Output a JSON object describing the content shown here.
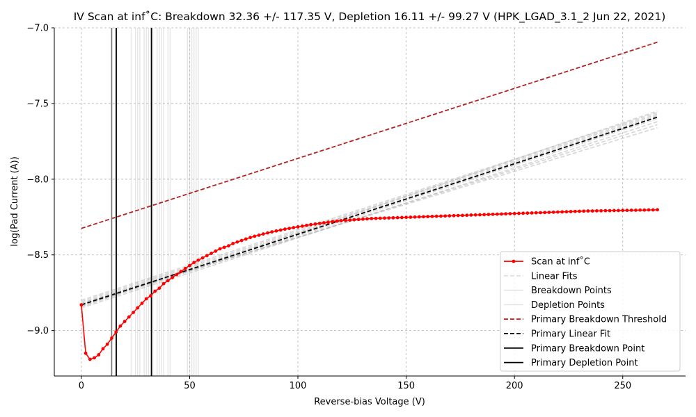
{
  "chart_data": {
    "type": "line",
    "title": "IV Scan at inf˚C: Breakdown 32.36 +/- 117.35 V, Depletion 16.11 +/- 99.27 V (HPK_LGAD_3.1_2 Jun 22, 2021)",
    "xlabel": "Reverse-bias Voltage (V)",
    "ylabel": "log(Pad Current (A))",
    "xlim": [
      -12.5,
      279
    ],
    "ylim": [
      -9.3,
      -7.0
    ],
    "x_ticks": [
      0,
      50,
      100,
      150,
      200,
      250
    ],
    "y_ticks": [
      -9.0,
      -8.5,
      -8.0,
      -7.5,
      -7.0
    ],
    "x_tick_labels": [
      "0",
      "50",
      "100",
      "150",
      "200",
      "250"
    ],
    "y_tick_labels": [
      "−9.0",
      "−8.5",
      "−8.0",
      "−7.5",
      "−7.0"
    ],
    "grid": true,
    "legend_position": "bottom-right",
    "legend": [
      "Scan at inf˚C",
      "Linear Fits",
      "Breakdown Points",
      "Depletion Points",
      "Primary Breakdown Threshold",
      "Primary Linear Fit",
      "Primary Breakdown Point",
      "Primary Depletion Point"
    ],
    "scan": {
      "color": "#ff0000",
      "x": [
        0,
        2,
        4,
        6,
        8,
        10,
        12,
        14,
        16,
        18,
        20,
        22,
        24,
        26,
        28,
        30,
        32,
        34,
        36,
        38,
        40,
        42,
        44,
        46,
        48,
        50,
        52,
        54,
        56,
        58,
        60,
        62,
        64,
        66,
        68,
        70,
        72,
        74,
        76,
        78,
        80,
        82,
        84,
        86,
        88,
        90,
        92,
        94,
        96,
        98,
        100,
        102,
        104,
        106,
        108,
        110,
        112,
        114,
        116,
        118,
        120,
        122,
        124,
        126,
        128,
        130,
        132,
        134,
        136,
        138,
        140,
        142,
        144,
        146,
        148,
        150,
        152,
        154,
        156,
        158,
        160,
        162,
        164,
        166,
        168,
        170,
        172,
        174,
        176,
        178,
        180,
        182,
        184,
        186,
        188,
        190,
        192,
        194,
        196,
        198,
        200,
        202,
        204,
        206,
        208,
        210,
        212,
        214,
        216,
        218,
        220,
        222,
        224,
        226,
        228,
        230,
        232,
        234,
        236,
        238,
        240,
        242,
        244,
        246,
        248,
        250,
        252,
        254,
        256,
        258,
        260,
        262,
        264,
        266
      ],
      "y": [
        -8.83,
        -9.15,
        -9.19,
        -9.18,
        -9.16,
        -9.12,
        -9.09,
        -9.05,
        -9.01,
        -8.97,
        -8.94,
        -8.91,
        -8.88,
        -8.85,
        -8.82,
        -8.79,
        -8.77,
        -8.74,
        -8.72,
        -8.69,
        -8.67,
        -8.65,
        -8.63,
        -8.61,
        -8.59,
        -8.57,
        -8.55,
        -8.535,
        -8.52,
        -8.505,
        -8.49,
        -8.475,
        -8.46,
        -8.45,
        -8.44,
        -8.425,
        -8.415,
        -8.405,
        -8.395,
        -8.385,
        -8.377,
        -8.37,
        -8.362,
        -8.355,
        -8.348,
        -8.342,
        -8.336,
        -8.33,
        -8.325,
        -8.32,
        -8.315,
        -8.31,
        -8.305,
        -8.3,
        -8.296,
        -8.292,
        -8.288,
        -8.284,
        -8.28,
        -8.277,
        -8.274,
        -8.272,
        -8.27,
        -8.268,
        -8.266,
        -8.264,
        -8.262,
        -8.26,
        -8.259,
        -8.258,
        -8.257,
        -8.256,
        -8.255,
        -8.254,
        -8.253,
        -8.252,
        -8.251,
        -8.25,
        -8.249,
        -8.248,
        -8.247,
        -8.246,
        -8.245,
        -8.244,
        -8.243,
        -8.242,
        -8.241,
        -8.24,
        -8.239,
        -8.238,
        -8.237,
        -8.236,
        -8.235,
        -8.234,
        -8.233,
        -8.232,
        -8.231,
        -8.23,
        -8.229,
        -8.228,
        -8.227,
        -8.226,
        -8.225,
        -8.224,
        -8.223,
        -8.222,
        -8.221,
        -8.22,
        -8.219,
        -8.218,
        -8.217,
        -8.216,
        -8.215,
        -8.214,
        -8.213,
        -8.212,
        -8.211,
        -8.21,
        -8.21,
        -8.209,
        -8.209,
        -8.208,
        -8.208,
        -8.207,
        -8.207,
        -8.206,
        -8.206,
        -8.205,
        -8.205,
        -8.204,
        -8.204,
        -8.203,
        -8.203,
        -8.202
      ]
    },
    "primary_breakdown_threshold": {
      "color": "#b22222",
      "x": [
        0,
        266
      ],
      "y": [
        -8.325,
        -7.095
      ]
    },
    "primary_linear_fit": {
      "color": "#000000",
      "x": [
        0,
        266
      ],
      "y": [
        -8.83,
        -7.59
      ]
    },
    "linear_fits": [
      {
        "x": [
          0,
          266
        ],
        "y": [
          -8.8,
          -7.56
        ]
      },
      {
        "x": [
          0,
          266
        ],
        "y": [
          -8.81,
          -7.57
        ]
      },
      {
        "x": [
          0,
          266
        ],
        "y": [
          -8.82,
          -7.58
        ]
      },
      {
        "x": [
          0,
          266
        ],
        "y": [
          -8.84,
          -7.6
        ]
      },
      {
        "x": [
          0,
          266
        ],
        "y": [
          -8.85,
          -7.62
        ]
      },
      {
        "x": [
          0,
          266
        ],
        "y": [
          -8.83,
          -7.64
        ]
      },
      {
        "x": [
          0,
          266
        ],
        "y": [
          -8.82,
          -7.66
        ]
      },
      {
        "x": [
          0,
          266
        ],
        "y": [
          -8.84,
          -7.55
        ]
      }
    ],
    "breakdown_points": [
      23,
      25,
      26,
      27,
      29,
      30,
      31,
      33,
      35,
      36,
      37,
      38,
      40,
      41
    ],
    "depletion_points": [
      14,
      49,
      50,
      51,
      52,
      53,
      54
    ],
    "primary_breakdown_point": 32.36,
    "primary_depletion_point": 16.11,
    "grey_vline": 14
  }
}
